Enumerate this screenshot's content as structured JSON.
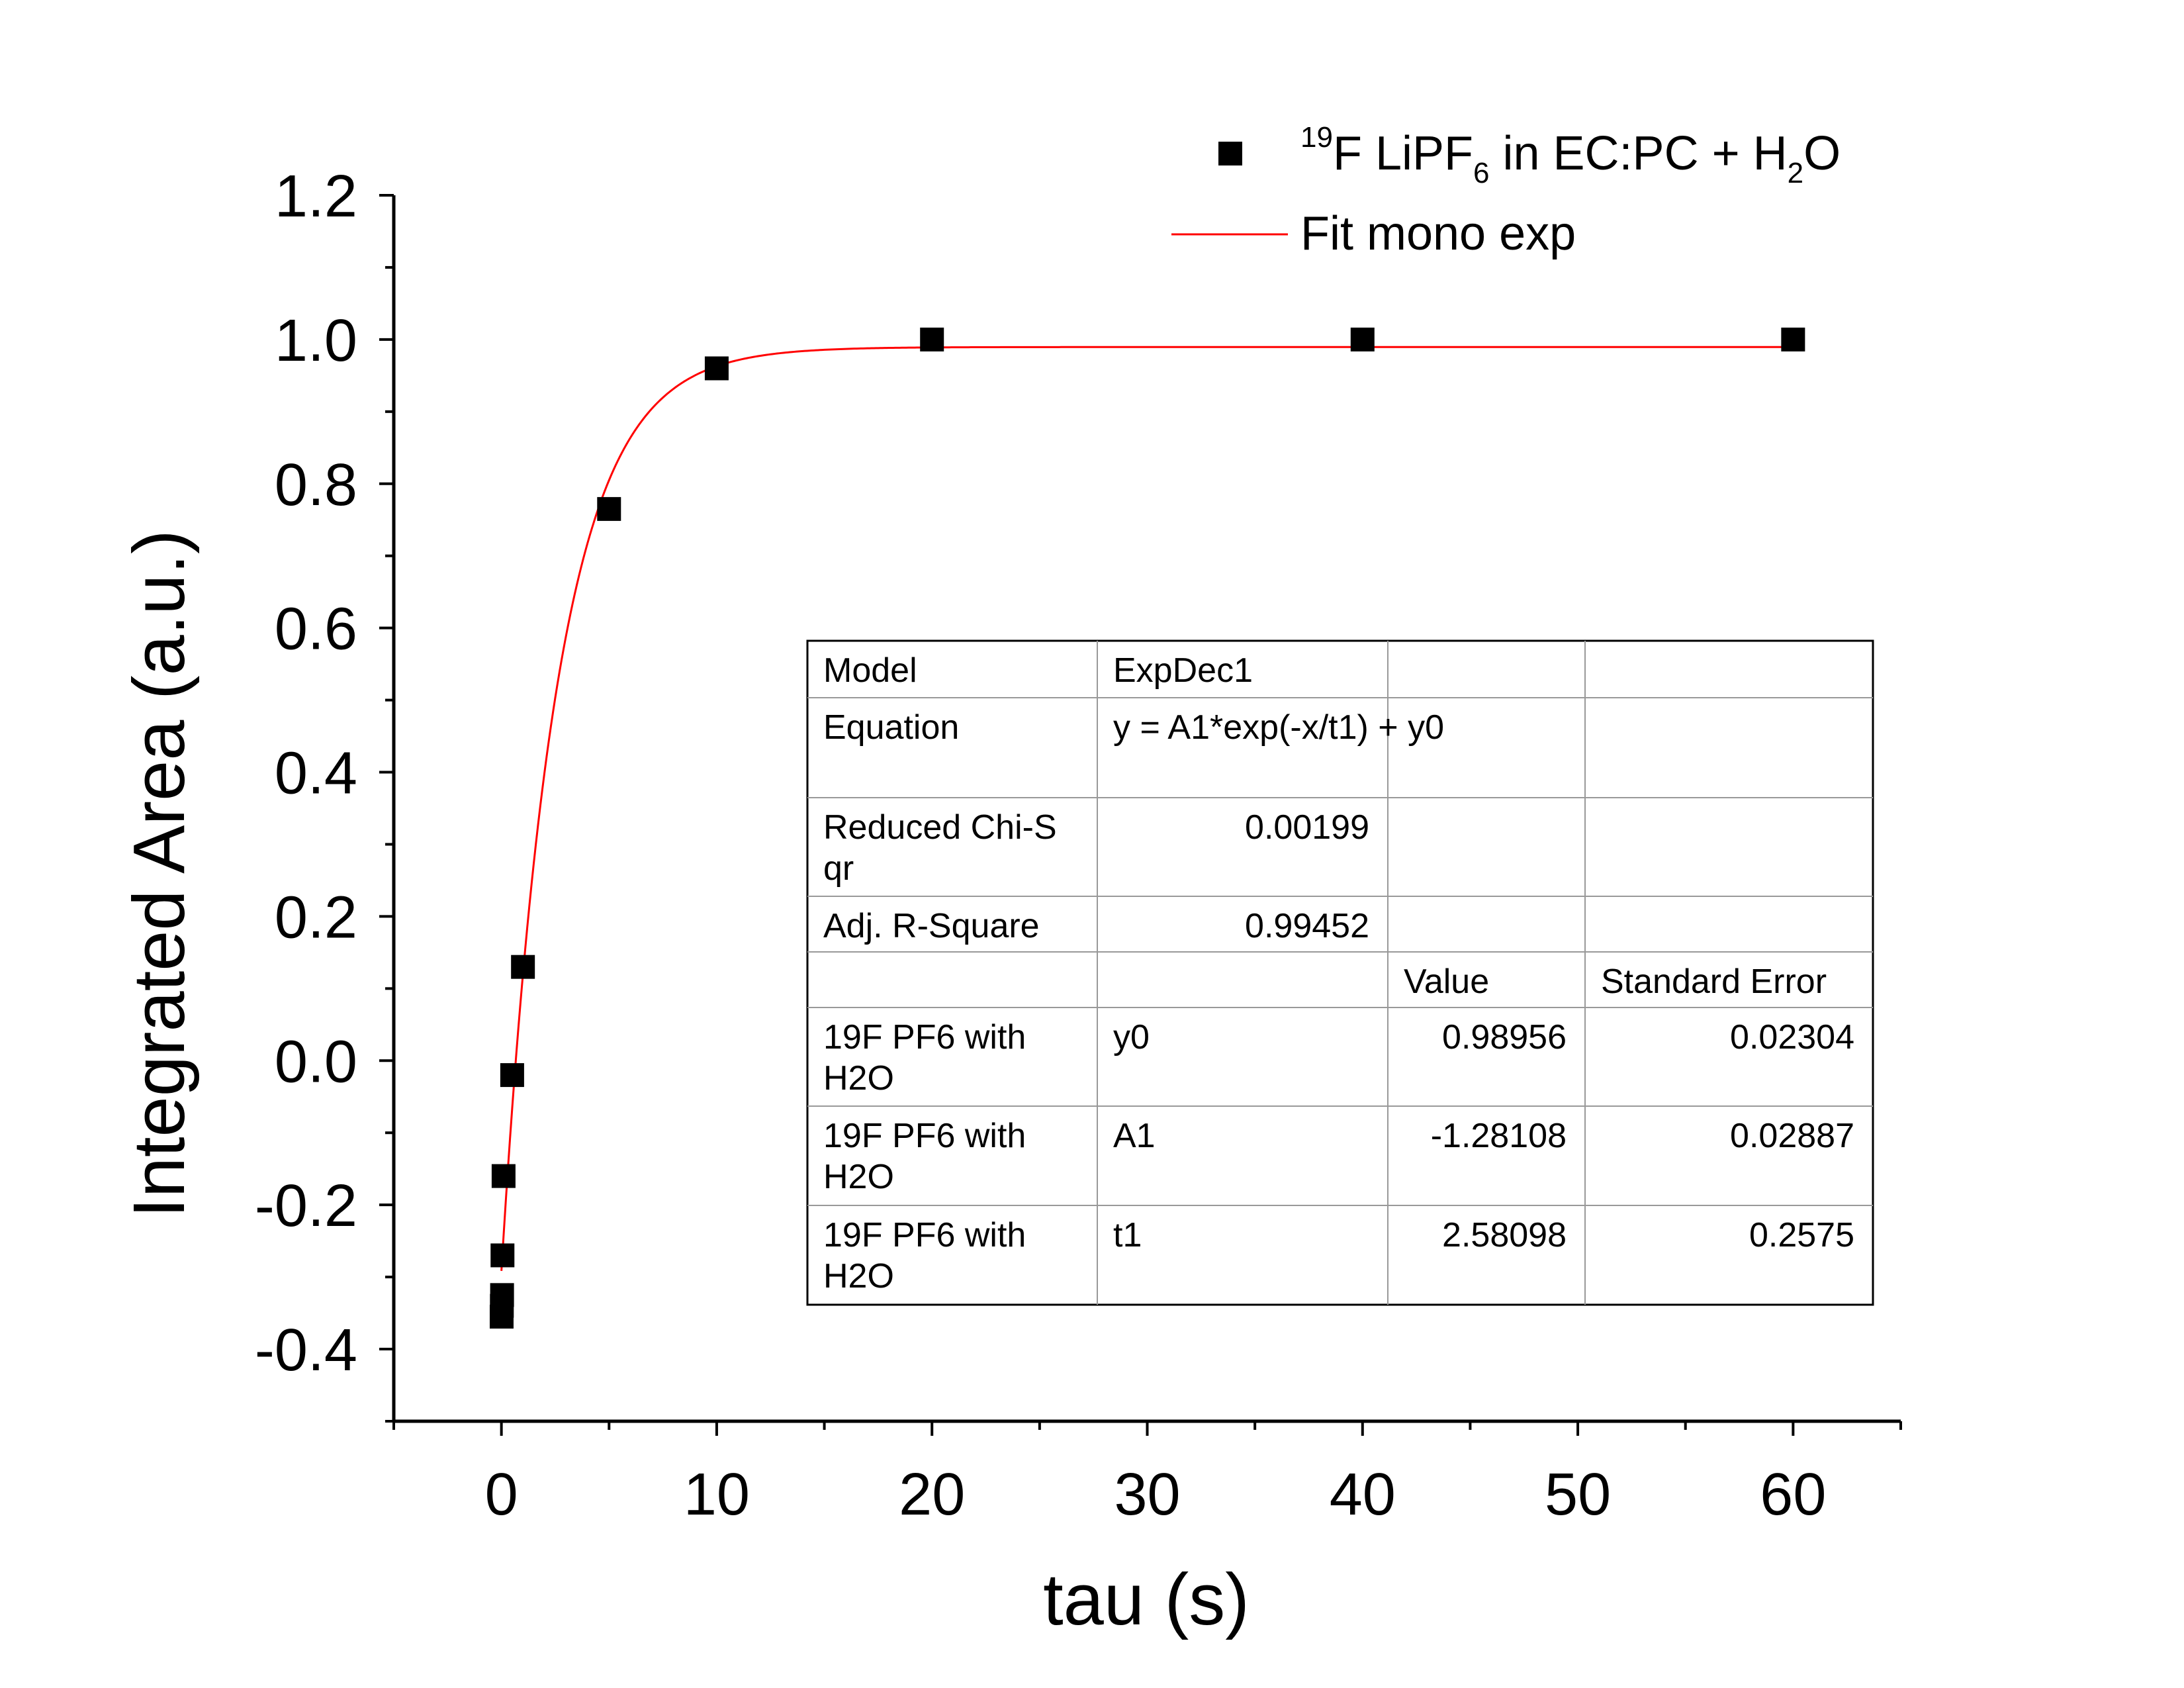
{
  "chart_data": {
    "type": "scatter",
    "xlabel": "tau (s)",
    "ylabel": "Integrated Area (a.u.)",
    "xlim": [
      -5,
      65
    ],
    "ylim": [
      -0.5,
      1.2
    ],
    "x_ticks": [
      0,
      10,
      20,
      30,
      40,
      50,
      60
    ],
    "x_tick_labels": [
      "0",
      "10",
      "20",
      "30",
      "40",
      "50",
      "60"
    ],
    "y_ticks": [
      -0.4,
      -0.2,
      0.0,
      0.2,
      0.4,
      0.6,
      0.8,
      1.0,
      1.2
    ],
    "y_tick_labels": [
      "-0.4",
      "-0.2",
      "0.0",
      "0.2",
      "0.4",
      "0.6",
      "0.8",
      "1.0",
      "1.2"
    ],
    "grid": false,
    "legend_position": "top-right",
    "series": [
      {
        "name": "19F LiPF6 in EC:PC + H2O",
        "marker": "square",
        "color": "#000000",
        "points": [
          {
            "x": 0.01,
            "y": -0.355
          },
          {
            "x": 0.02,
            "y": -0.34
          },
          {
            "x": 0.03,
            "y": -0.325
          },
          {
            "x": 0.05,
            "y": -0.27
          },
          {
            "x": 0.1,
            "y": -0.16
          },
          {
            "x": 0.5,
            "y": -0.02
          },
          {
            "x": 1.0,
            "y": 0.13
          },
          {
            "x": 5.0,
            "y": 0.765
          },
          {
            "x": 10.0,
            "y": 0.96
          },
          {
            "x": 20.0,
            "y": 1.0
          },
          {
            "x": 40.0,
            "y": 1.0
          },
          {
            "x": 60.0,
            "y": 1.0
          }
        ]
      },
      {
        "name": "Fit mono exp",
        "type": "line",
        "color": "#ff0000",
        "model": {
          "y0": 0.98956,
          "A1": -1.28108,
          "t1": 2.58098
        },
        "x_range": [
          0,
          60
        ]
      }
    ],
    "legend": [
      {
        "pre_sup": "19",
        "main": "F LiPF",
        "sub": "6",
        "mid": " in EC:PC + H",
        "sub2": "2",
        "post": "O"
      },
      {
        "text": "Fit mono exp"
      }
    ],
    "fit_table": {
      "rows": [
        {
          "c1": "Model",
          "c2": "ExpDec1",
          "c3": "",
          "c4": ""
        },
        {
          "c1": "Equation",
          "c2": "y = A1*exp(-x/t1) + y0",
          "c3": "",
          "c4": ""
        },
        {
          "c1": "Reduced Chi-Sqr",
          "c2": "0.00199",
          "c3": "",
          "c4": ""
        },
        {
          "c1": "Adj. R-Square",
          "c2": "0.99452",
          "c3": "",
          "c4": ""
        },
        {
          "c1": "",
          "c2": "",
          "c3": "Value",
          "c4": "Standard Error"
        },
        {
          "c1": "19F PF6 with H2O",
          "c2": "y0",
          "c3": "0.98956",
          "c4": "0.02304"
        },
        {
          "c1": "19F PF6 with H2O",
          "c2": "A1",
          "c3": "-1.28108",
          "c4": "0.02887"
        },
        {
          "c1": "19F PF6 with H2O",
          "c2": "t1",
          "c3": "2.58098",
          "c4": "0.2575"
        }
      ]
    }
  }
}
